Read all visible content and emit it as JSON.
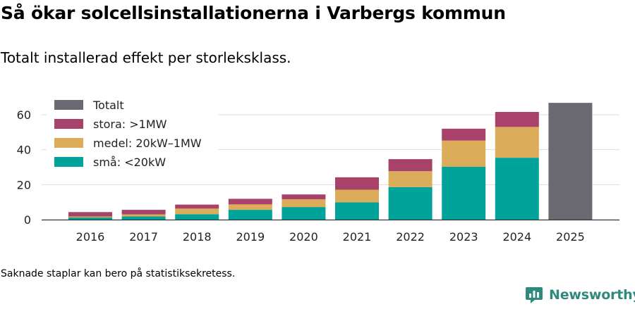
{
  "title": "Så ökar solcellsinstallationerna i Varbergs kommun",
  "subtitle": "Totalt installerad effekt per storleksklass.",
  "note": "Saknade staplar kan bero på statistiksekretess.",
  "brand": "Newsworthy",
  "chart_data": {
    "type": "bar",
    "stacked": true,
    "categories": [
      "2016",
      "2017",
      "2018",
      "2019",
      "2020",
      "2021",
      "2022",
      "2023",
      "2024",
      "2025"
    ],
    "series": [
      {
        "name": "små: <20kW",
        "color": "#00a39a",
        "values": [
          1.2,
          1.8,
          3.1,
          5.6,
          7.2,
          9.9,
          18.6,
          30.2,
          35.4,
          null
        ]
      },
      {
        "name": "medel: 20kW–1MW",
        "color": "#dbad5a",
        "values": [
          0.6,
          1.2,
          3.2,
          3.1,
          4.4,
          7.2,
          9.1,
          15.0,
          17.6,
          null
        ]
      },
      {
        "name": "stora: >1MW",
        "color": "#a8426a",
        "values": [
          2.5,
          2.6,
          2.3,
          3.2,
          2.8,
          7.1,
          6.9,
          6.8,
          8.6,
          null
        ]
      },
      {
        "name": "Totalt",
        "color": "#6b6a72",
        "values": [
          null,
          null,
          null,
          null,
          null,
          null,
          null,
          null,
          null,
          66.8
        ]
      }
    ],
    "legend": [
      "Totalt",
      "stora: >1MW",
      "medel: 20kW–1MW",
      "små: <20kW"
    ],
    "yticks": [
      0,
      20,
      40,
      60
    ],
    "ylim": [
      0,
      70
    ],
    "grid": true,
    "legend_position": "top-left"
  }
}
